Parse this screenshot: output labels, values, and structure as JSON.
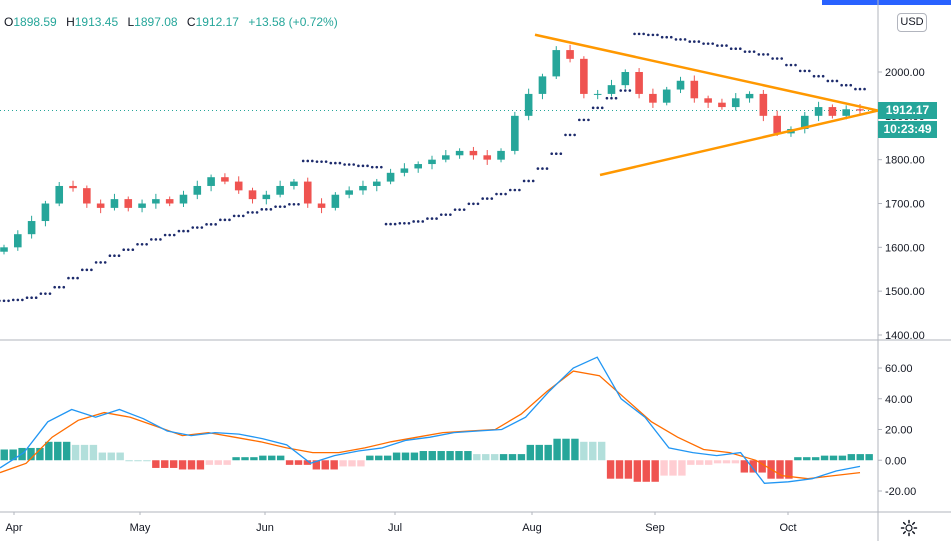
{
  "legend": {
    "open_label": "O",
    "open": "1898.59",
    "high_label": "H",
    "high": "1913.45",
    "low_label": "L",
    "low": "1897.08",
    "close_label": "C",
    "close": "1912.17",
    "change": "+13.58 (+0.72%)"
  },
  "currency_label": "USD",
  "last_price_label": "1912.17",
  "countdown_label": "10:23:49",
  "colors": {
    "up": "#26a69a",
    "down": "#ef5350",
    "psar": "#1c2a6b",
    "triangle": "#ff9800",
    "macd": "#2196f3",
    "signal": "#ff6d00",
    "hist_up_strong": "#26a69a",
    "hist_up_weak": "#b2dfdb",
    "hist_down_strong": "#ef5350",
    "hist_down_weak": "#ffcdd2",
    "accent_bar": "#2962ff"
  },
  "chart_data": [
    {
      "type": "candlestick",
      "y_axis_ticks": [
        "1400.00",
        "1500.00",
        "1600.00",
        "1700.00",
        "1800.00",
        "1900.00",
        "2000.00"
      ],
      "ylim": [
        1400,
        2100
      ],
      "last_price": 1912.17,
      "ohlc": {
        "open": 1898.59,
        "high": 1913.45,
        "low": 1897.08,
        "close": 1912.17
      },
      "x_axis_labels": [
        "Apr",
        "May",
        "Jun",
        "Jul",
        "Aug",
        "Sep",
        "Oct"
      ],
      "close_series": [
        1600,
        1630,
        1660,
        1700,
        1740,
        1735,
        1700,
        1690,
        1710,
        1690,
        1700,
        1710,
        1700,
        1720,
        1740,
        1760,
        1750,
        1730,
        1710,
        1720,
        1740,
        1750,
        1700,
        1690,
        1720,
        1730,
        1740,
        1750,
        1770,
        1780,
        1790,
        1800,
        1810,
        1820,
        1810,
        1800,
        1820,
        1900,
        1950,
        1990,
        2050,
        2030,
        1950,
        1950,
        1970,
        2000,
        1950,
        1930,
        1960,
        1980,
        1940,
        1930,
        1920,
        1940,
        1950,
        1900,
        1860,
        1870,
        1900,
        1920,
        1900,
        1915,
        1912.17
      ],
      "overlays": [
        "Parabolic SAR",
        "Symmetrical triangle trendlines"
      ]
    },
    {
      "type": "line+histogram",
      "name": "MACD",
      "y_axis_ticks": [
        "-20.00",
        "0.00",
        "20.00",
        "40.00",
        "60.00"
      ],
      "ylim": [
        -30,
        80
      ],
      "macd_line": [
        -5,
        5,
        25,
        33,
        28,
        33,
        27,
        19,
        16,
        18,
        17,
        14,
        10,
        -2,
        3,
        6,
        8,
        13,
        15,
        18,
        19,
        20,
        28,
        45,
        60,
        67,
        40,
        28,
        8,
        5,
        3,
        5,
        -15,
        -14,
        -12,
        -7,
        -4
      ],
      "signal_line": [
        -8,
        -2,
        15,
        26,
        31,
        28,
        22,
        16,
        18,
        15,
        12,
        8,
        5,
        5,
        8,
        12,
        15,
        18,
        19,
        20,
        30,
        45,
        58,
        55,
        40,
        25,
        15,
        7,
        5,
        0,
        -10,
        -12,
        -10,
        -8
      ],
      "histogram": [
        7,
        8,
        12,
        10,
        5,
        0,
        -5,
        -6,
        -3,
        2,
        3,
        -3,
        -6,
        -4,
        3,
        5,
        6,
        6,
        4,
        4,
        10,
        14,
        12,
        -12,
        -14,
        -10,
        -3,
        -2,
        -8,
        -12,
        2,
        3,
        4
      ]
    }
  ]
}
